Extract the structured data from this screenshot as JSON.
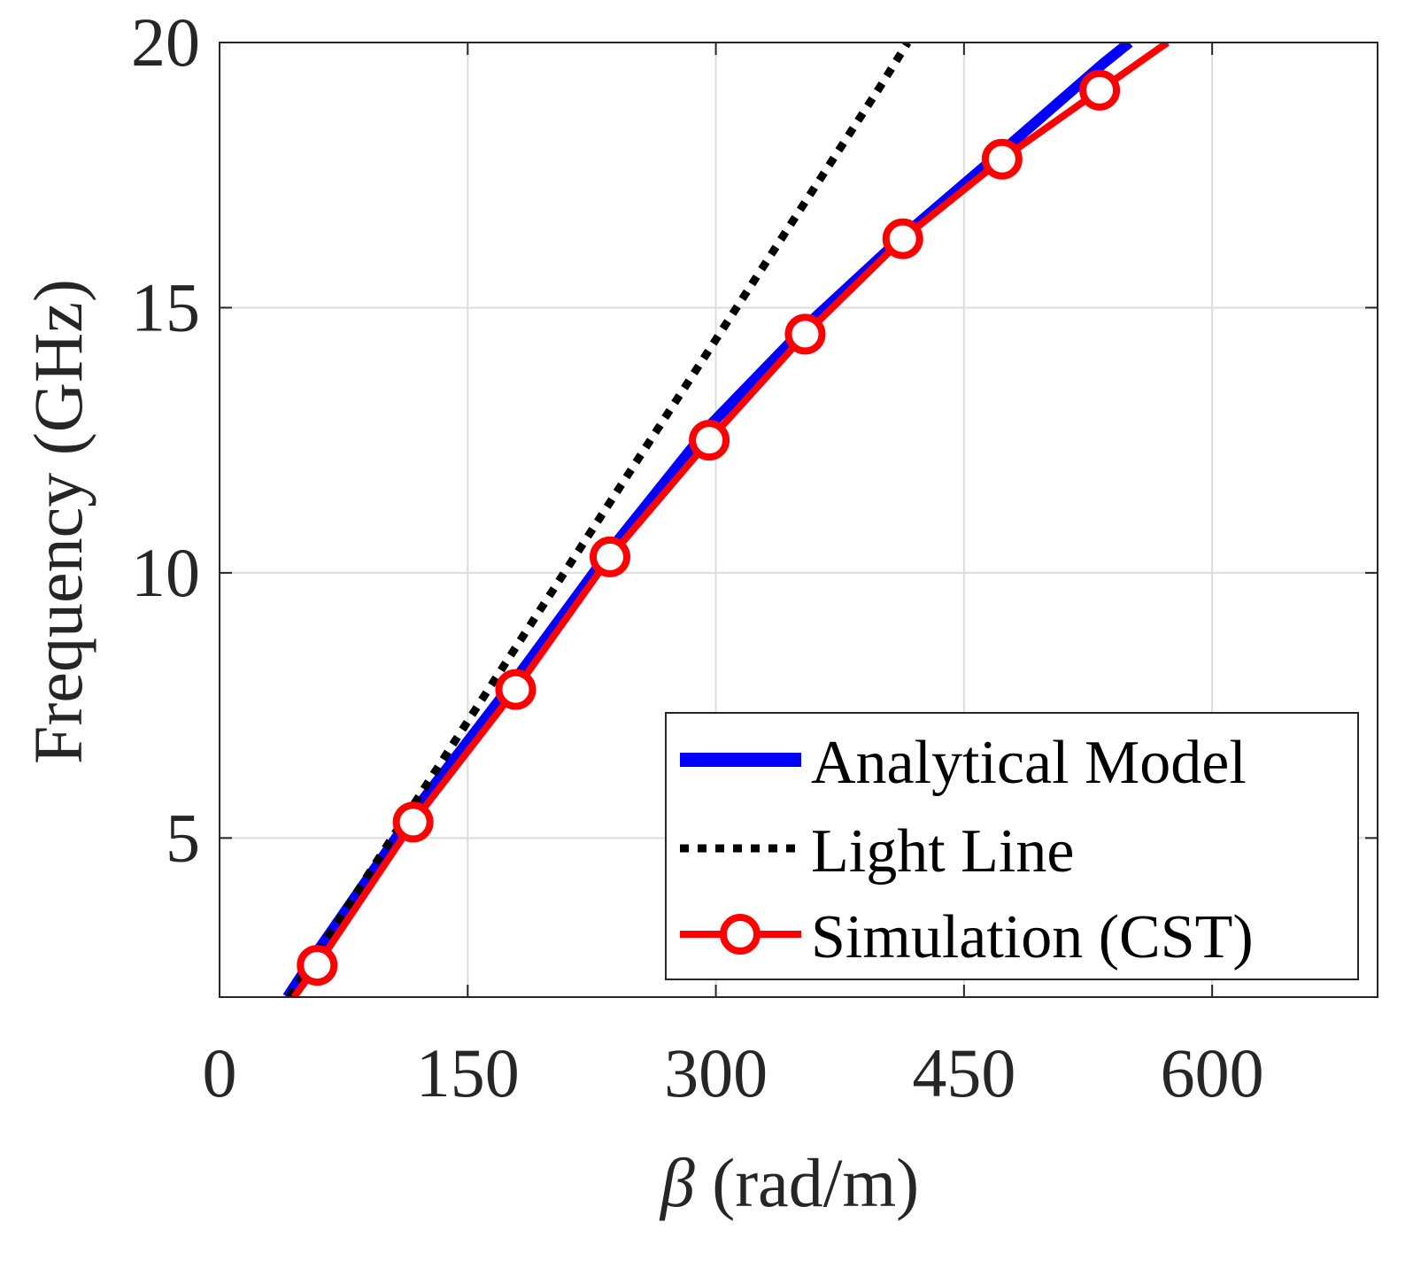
{
  "chart_data": {
    "type": "line",
    "title": "",
    "xlabel_symbol": "β",
    "xlabel_rest": " (rad/m)",
    "ylabel": "Frequency (GHz)",
    "xlim": [
      0,
      700
    ],
    "ylim": [
      2,
      20
    ],
    "xticks": [
      0,
      150,
      300,
      450,
      600
    ],
    "xtick_labels": [
      "0",
      "150",
      "300",
      "450",
      "600"
    ],
    "yticks": [
      5,
      10,
      15,
      20
    ],
    "ytick_labels": [
      "5",
      "10",
      "15",
      "20"
    ],
    "grid": true,
    "legend_position": "bottom-right",
    "series": [
      {
        "name": "Analytical Model",
        "color": "#0000ff",
        "style": "solid",
        "x": [
          41,
          60,
          120,
          179,
          238,
          297,
          356,
          415,
          475,
          534,
          550
        ],
        "y": [
          2.0,
          2.9,
          5.6,
          8.0,
          10.5,
          12.8,
          14.7,
          16.4,
          18.0,
          19.6,
          20.0
        ]
      },
      {
        "name": "Light Line",
        "color": "#000000",
        "style": "dotted",
        "x": [
          42,
          100,
          150,
          200,
          250,
          300,
          350,
          400,
          416
        ],
        "y": [
          2.0,
          4.8,
          7.2,
          9.6,
          12.0,
          14.4,
          16.8,
          19.2,
          20.0
        ]
      },
      {
        "name": "Simulation (CST)",
        "color": "#ff0000",
        "style": "solid-circle",
        "x": [
          45,
          59,
          117,
          179,
          236,
          296,
          354,
          413,
          473,
          532,
          573
        ],
        "y": [
          2.0,
          2.6,
          5.3,
          7.8,
          10.3,
          12.5,
          14.5,
          16.3,
          17.8,
          19.1,
          20.0
        ],
        "marker_x": [
          59,
          117,
          179,
          236,
          296,
          354,
          413,
          473,
          532
        ],
        "marker_y": [
          2.6,
          5.3,
          7.8,
          10.3,
          12.5,
          14.5,
          16.3,
          17.8,
          19.1
        ]
      }
    ]
  }
}
